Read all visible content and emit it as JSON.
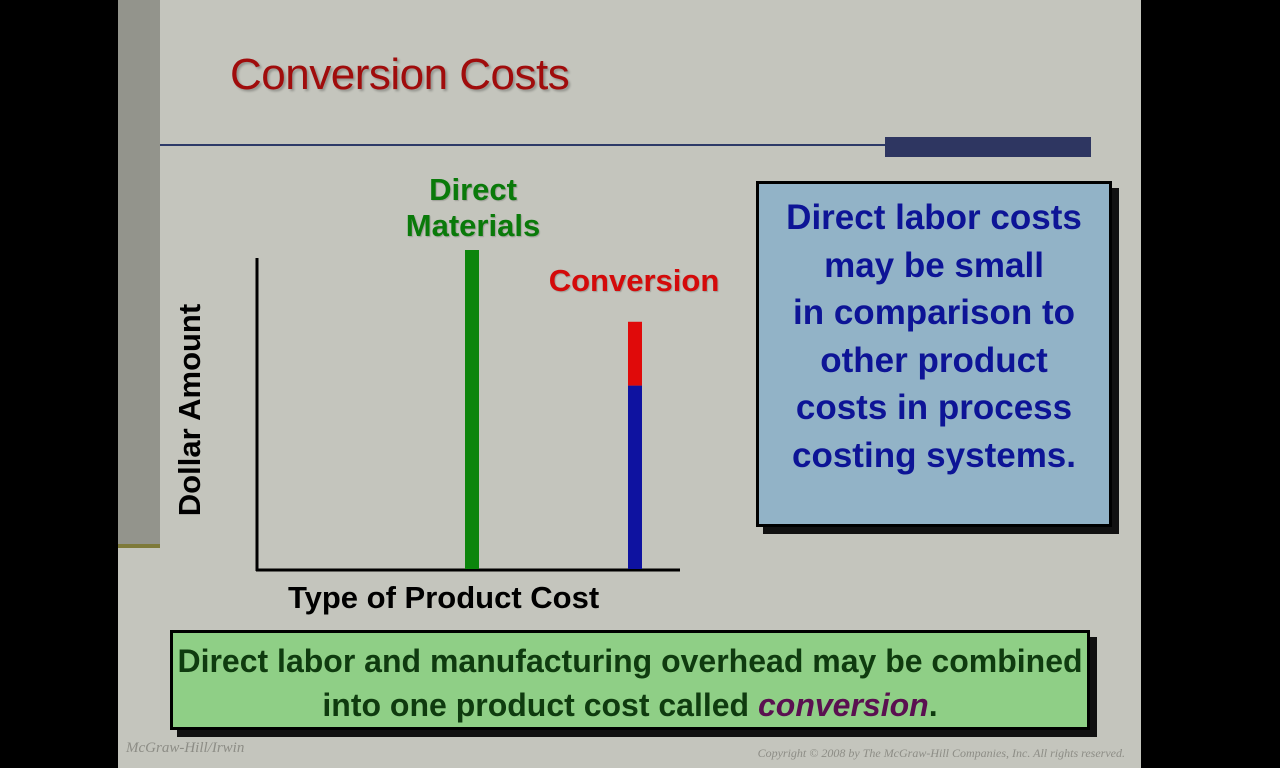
{
  "slide": {
    "title": "Conversion Costs",
    "callout_blue": [
      "Direct labor costs",
      "may be small",
      "in comparison to",
      "other product",
      "costs in process",
      "costing systems."
    ],
    "callout_green": {
      "text": "Direct labor and manufacturing overhead may be combined into one product cost called ",
      "emphasis": "conversion",
      "end": "."
    },
    "footer_left": "McGraw-Hill/Irwin",
    "footer_right": "Copyright © 2008 by The McGraw-Hill Companies, Inc. All rights reserved."
  },
  "chart_data": {
    "type": "bar",
    "stacked": true,
    "xlabel": "Type of Product Cost",
    "ylabel": "Dollar Amount",
    "categories": [
      "Direct Materials",
      "Conversion"
    ],
    "category_labels": [
      [
        "Direct",
        "Materials"
      ],
      [
        "Conversion"
      ]
    ],
    "category_label_colors": [
      "#0a7a0a",
      "#d40a0a"
    ],
    "series": [
      {
        "values": [
          1.0,
          0
        ],
        "color": "#0c850c"
      },
      {
        "values": [
          0,
          0.575
        ],
        "color": "#0e12a0"
      },
      {
        "values": [
          0,
          0.2
        ],
        "color": "#e00a0a"
      }
    ],
    "ylim": [
      0,
      1
    ],
    "ticks": false,
    "grid": false
  }
}
